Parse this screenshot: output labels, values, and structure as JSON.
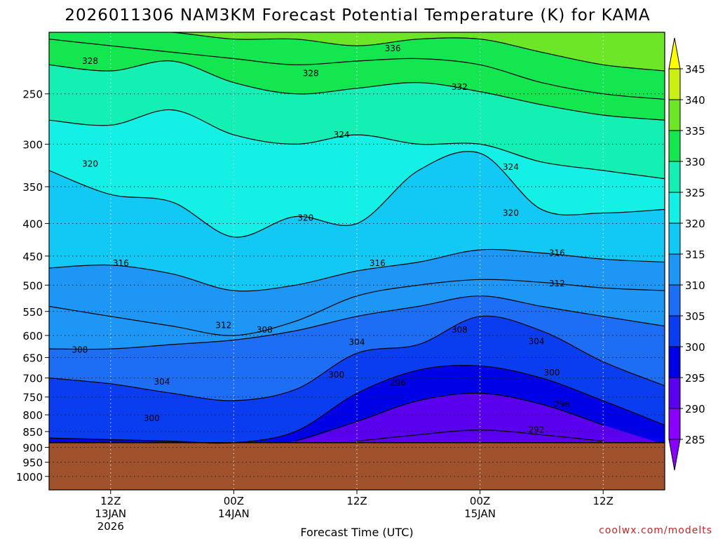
{
  "title": "2026011306 NAM3KM Forecast Potential Temperature (K) for KAMA",
  "credit": "coolwx.com/modelts",
  "colors": {
    "ground": "#a0522d",
    "fill_levels": [
      {
        "min": 280,
        "max": 285,
        "color": "#8a00ff"
      },
      {
        "min": 285,
        "max": 290,
        "color": "#8a00ff"
      },
      {
        "min": 290,
        "max": 295,
        "color": "#5a00ee"
      },
      {
        "min": 295,
        "max": 300,
        "color": "#0000e6"
      },
      {
        "min": 300,
        "max": 305,
        "color": "#0a3cf0"
      },
      {
        "min": 305,
        "max": 310,
        "color": "#1e6ef5"
      },
      {
        "min": 310,
        "max": 315,
        "color": "#1e96f5"
      },
      {
        "min": 315,
        "max": 320,
        "color": "#12c8f5"
      },
      {
        "min": 320,
        "max": 325,
        "color": "#14f0e6"
      },
      {
        "min": 325,
        "max": 330,
        "color": "#14f0b4"
      },
      {
        "min": 330,
        "max": 335,
        "color": "#14e650"
      },
      {
        "min": 335,
        "max": 340,
        "color": "#6ee628"
      },
      {
        "min": 340,
        "max": 345,
        "color": "#c8f014"
      },
      {
        "min": 345,
        "max": 350,
        "color": "#ffff00"
      }
    ]
  },
  "chart_data": {
    "type": "contour",
    "title": "2026011306 NAM3KM Forecast Potential Temperature (K) for KAMA",
    "xlabel": "Forecast Time (UTC)",
    "ylabel": "",
    "x_range_hours": [
      0,
      60
    ],
    "y_range_hPa": [
      200,
      1050
    ],
    "y_scale": "log-pressure",
    "grid": true,
    "ground_pressure_hPa": 885,
    "x_ticks": [
      {
        "hour": 6,
        "label": "12Z",
        "sub1": "13JAN",
        "sub2": "2026"
      },
      {
        "hour": 18,
        "label": "00Z",
        "sub1": "14JAN",
        "sub2": ""
      },
      {
        "hour": 30,
        "label": "12Z",
        "sub1": "",
        "sub2": ""
      },
      {
        "hour": 42,
        "label": "00Z",
        "sub1": "15JAN",
        "sub2": ""
      },
      {
        "hour": 54,
        "label": "12Z",
        "sub1": "",
        "sub2": ""
      }
    ],
    "y_ticks": [
      250,
      300,
      350,
      400,
      450,
      500,
      550,
      600,
      650,
      700,
      750,
      800,
      850,
      900,
      950,
      1000
    ],
    "y_tick_labels": [
      "250",
      "300",
      "350",
      "400",
      "450",
      "500",
      "550",
      "600",
      "650",
      "700",
      "750",
      "800",
      "850",
      "900",
      "950",
      "1000"
    ],
    "colorbar": {
      "min": 285,
      "max": 345,
      "ticks": [
        285,
        290,
        295,
        300,
        305,
        310,
        315,
        320,
        325,
        330,
        335,
        340,
        345
      ],
      "labels": [
        "285",
        "290",
        "295",
        "300",
        "305",
        "310",
        "315",
        "320",
        "325",
        "330",
        "335",
        "340",
        "345"
      ]
    },
    "x_samples_hours": [
      0,
      6,
      12,
      18,
      24,
      30,
      36,
      42,
      48,
      54,
      60
    ],
    "isentropes": [
      {
        "theta": 292,
        "p": [
          null,
          null,
          null,
          null,
          null,
          880,
          860,
          845,
          860,
          880,
          null
        ]
      },
      {
        "theta": 296,
        "p": [
          null,
          null,
          null,
          null,
          880,
          820,
          760,
          740,
          770,
          830,
          null
        ]
      },
      {
        "theta": 300,
        "p": [
          870,
          875,
          880,
          885,
          850,
          740,
          680,
          670,
          700,
          760,
          830
        ]
      },
      {
        "theta": 304,
        "p": [
          700,
          715,
          740,
          760,
          730,
          640,
          620,
          560,
          590,
          660,
          720
        ]
      },
      {
        "theta": 308,
        "p": [
          630,
          630,
          620,
          610,
          590,
          560,
          540,
          520,
          540,
          560,
          580
        ]
      },
      {
        "theta": 312,
        "p": [
          540,
          560,
          580,
          600,
          570,
          520,
          500,
          490,
          495,
          505,
          510
        ]
      },
      {
        "theta": 316,
        "p": [
          470,
          465,
          480,
          510,
          500,
          475,
          460,
          440,
          445,
          455,
          460
        ]
      },
      {
        "theta": 320,
        "p": [
          330,
          360,
          370,
          420,
          390,
          400,
          330,
          310,
          380,
          385,
          380
        ]
      },
      {
        "theta": 324,
        "p": [
          275,
          280,
          265,
          290,
          300,
          290,
          300,
          300,
          320,
          330,
          340
        ]
      },
      {
        "theta": 328,
        "p": [
          225,
          230,
          222,
          240,
          250,
          245,
          240,
          248,
          260,
          270,
          275
        ]
      },
      {
        "theta": 332,
        "p": [
          205,
          210,
          215,
          220,
          225,
          222,
          220,
          225,
          240,
          250,
          255
        ]
      },
      {
        "theta": 336,
        "p": [
          195,
          198,
          200,
          205,
          205,
          210,
          205,
          205,
          215,
          225,
          230
        ]
      }
    ],
    "contour_labels": [
      {
        "value": "328",
        "hour": 4.0,
        "p": 222
      },
      {
        "value": "328",
        "hour": 25.5,
        "p": 232
      },
      {
        "value": "336",
        "hour": 33.5,
        "p": 212
      },
      {
        "value": "332",
        "hour": 40.0,
        "p": 244
      },
      {
        "value": "324",
        "hour": 28.5,
        "p": 290
      },
      {
        "value": "320",
        "hour": 4.0,
        "p": 322
      },
      {
        "value": "324",
        "hour": 45.0,
        "p": 326
      },
      {
        "value": "320",
        "hour": 25.0,
        "p": 392
      },
      {
        "value": "320",
        "hour": 45.0,
        "p": 385
      },
      {
        "value": "316",
        "hour": 7.0,
        "p": 462
      },
      {
        "value": "316",
        "hour": 32.0,
        "p": 462
      },
      {
        "value": "316",
        "hour": 49.5,
        "p": 445
      },
      {
        "value": "312",
        "hour": 49.5,
        "p": 497
      },
      {
        "value": "312",
        "hour": 17.0,
        "p": 578
      },
      {
        "value": "308",
        "hour": 21.0,
        "p": 588
      },
      {
        "value": "308",
        "hour": 40.0,
        "p": 588
      },
      {
        "value": "304",
        "hour": 30.0,
        "p": 615
      },
      {
        "value": "304",
        "hour": 47.5,
        "p": 613
      },
      {
        "value": "308",
        "hour": 3.0,
        "p": 632
      },
      {
        "value": "300",
        "hour": 28.0,
        "p": 692
      },
      {
        "value": "300",
        "hour": 49.0,
        "p": 687
      },
      {
        "value": "304",
        "hour": 11.0,
        "p": 710
      },
      {
        "value": "296",
        "hour": 34.0,
        "p": 712
      },
      {
        "value": "296",
        "hour": 50.0,
        "p": 770
      },
      {
        "value": "300",
        "hour": 10.0,
        "p": 810
      },
      {
        "value": "292",
        "hour": 47.5,
        "p": 845
      }
    ]
  }
}
